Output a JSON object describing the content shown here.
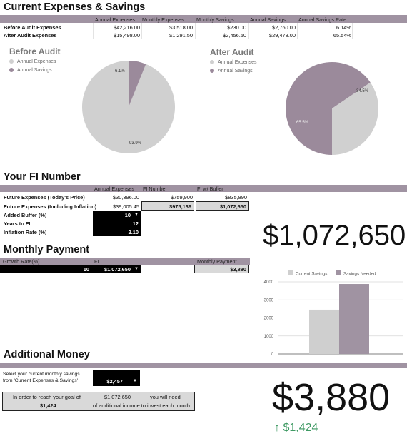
{
  "colors": {
    "band": "#a093a2",
    "slice_savings": "#9b8a9b",
    "slice_expenses": "#d0d0d0",
    "delta_green": "#3f9a64"
  },
  "expenses": {
    "title": "Current Expenses & Savings",
    "headers": [
      "Annual Expenses",
      "Monthly Expenses",
      "Monthly Savings",
      "Annual Savings",
      "Annual Savings Rate"
    ],
    "rows": [
      {
        "label": "Before Audit Expenses",
        "values": [
          "$42,216.00",
          "$3,518.00",
          "$230.00",
          "$2,760.00",
          "6.14%"
        ]
      },
      {
        "label": "After Audit Expenses",
        "values": [
          "$15,498.00",
          "$1,291.50",
          "$2,456.50",
          "$29,478.00",
          "65.54%"
        ]
      }
    ]
  },
  "pie_charts": {
    "legend": [
      "Annual Expenses",
      "Annual Savings"
    ],
    "before": {
      "title": "Before Audit",
      "expenses_pct": 93.9,
      "savings_pct": 6.1,
      "expenses_label": "93.9%",
      "savings_label": "6.1%"
    },
    "after": {
      "title": "After Audit",
      "expenses_pct": 34.5,
      "savings_pct": 65.5,
      "expenses_label": "34.5%",
      "savings_label": "65.5%"
    }
  },
  "fi": {
    "title": "Your FI Number",
    "headers": [
      "Annual Expenses",
      "FI Number",
      "FI w/ Buffer"
    ],
    "rows": [
      {
        "label": "Future Expenses (Today's Price)",
        "annual": "$30,396.00",
        "fi": "$759,900",
        "buffer": "$835,890"
      },
      {
        "label": "Future Expenses (Including Inflation)",
        "annual": "$39,005.45",
        "fi": "$975,136",
        "buffer": "$1,072,650"
      }
    ],
    "inputs": [
      {
        "label": "Added Buffer (%)",
        "value": "10",
        "dropdown": true
      },
      {
        "label": "Years to FI",
        "value": "12",
        "dropdown": false
      },
      {
        "label": "Inflation Rate (%)",
        "value": "2.10",
        "dropdown": false
      }
    ],
    "big_value": "$1,072,650"
  },
  "monthly": {
    "title": "Monthly Payment",
    "growth_header": "Growth Rate(%)",
    "fi_header": "FI",
    "payment_header": "Monthly Payment",
    "growth_value": "10",
    "fi_value": "$1,072,650",
    "payment_value": "$3,880"
  },
  "chart_data": {
    "type": "bar",
    "categories": [
      ""
    ],
    "series": [
      {
        "name": "Current Savings",
        "values": [
          2457
        ],
        "color": "#cfcfcf"
      },
      {
        "name": "Savings Needed",
        "values": [
          3880
        ],
        "color": "#a093a2"
      }
    ],
    "ylim": [
      0,
      4000
    ],
    "yticks": [
      "0",
      "1000",
      "2000",
      "3000",
      "4000"
    ],
    "legend_position": "top",
    "grid": true
  },
  "additional": {
    "title": "Additional Money",
    "select_line1": "Select your current monthly savings",
    "select_line2": "from 'Current Expenses & Savings'",
    "select_value": "$2,457",
    "goal_text_a": "In order to reach your goal of",
    "goal_value": "$1,072,650",
    "goal_text_b": "you will need",
    "extra_value": "$1,424",
    "extra_text": "of additional income to invest each month.",
    "big_value": "$3,880",
    "delta": "↑ $1,424"
  }
}
